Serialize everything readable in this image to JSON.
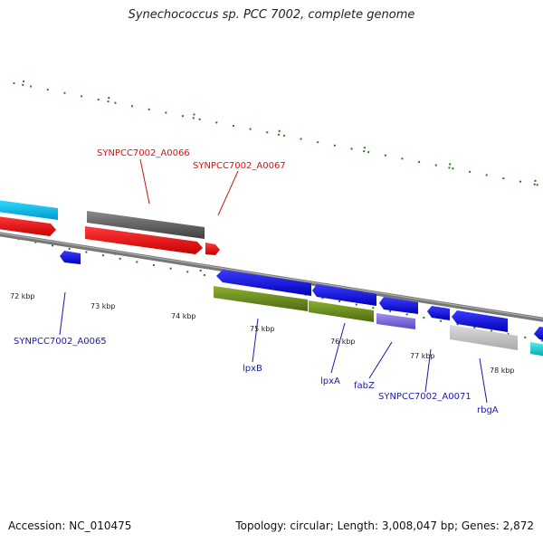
{
  "title": "Synechococcus sp. PCC 7002, complete genome",
  "footer": {
    "accession": "Accession: NC_010475",
    "summary": "Topology: circular; Length: 3,008,047 bp; Genes: 2,872"
  },
  "ruler": {
    "ticks": [
      {
        "label": "72 kbp"
      },
      {
        "label": "73 kbp"
      },
      {
        "label": "74 kbp"
      },
      {
        "label": "75 kbp"
      },
      {
        "label": "76 kbp"
      },
      {
        "label": "77 kbp"
      },
      {
        "label": "78 kbp"
      }
    ]
  },
  "genes": {
    "forward": [
      {
        "label": "SYNPCC7002_A0066",
        "color": "#6a6a6a"
      },
      {
        "label": "SYNPCC7002_A0067",
        "color": "#ee1111"
      }
    ],
    "reverse": [
      {
        "label": "SYNPCC7002_A0065",
        "color": "#1a1ae6"
      },
      {
        "label": "lpxB",
        "color": "#6e8c1e"
      },
      {
        "label": "lpxA",
        "color": "#6e8c1e"
      },
      {
        "label": "fabZ",
        "color": "#7a6ad8"
      },
      {
        "label": "SYNPCC7002_A0071",
        "color": "#1a1ae6"
      },
      {
        "label": "rbgA",
        "color": "#1a1ae6"
      }
    ]
  },
  "colors": {
    "forward_label": "#dd1111",
    "reverse_label": "#1a1aaa",
    "tick": "#2a7a1a",
    "backbone": "#777777"
  }
}
